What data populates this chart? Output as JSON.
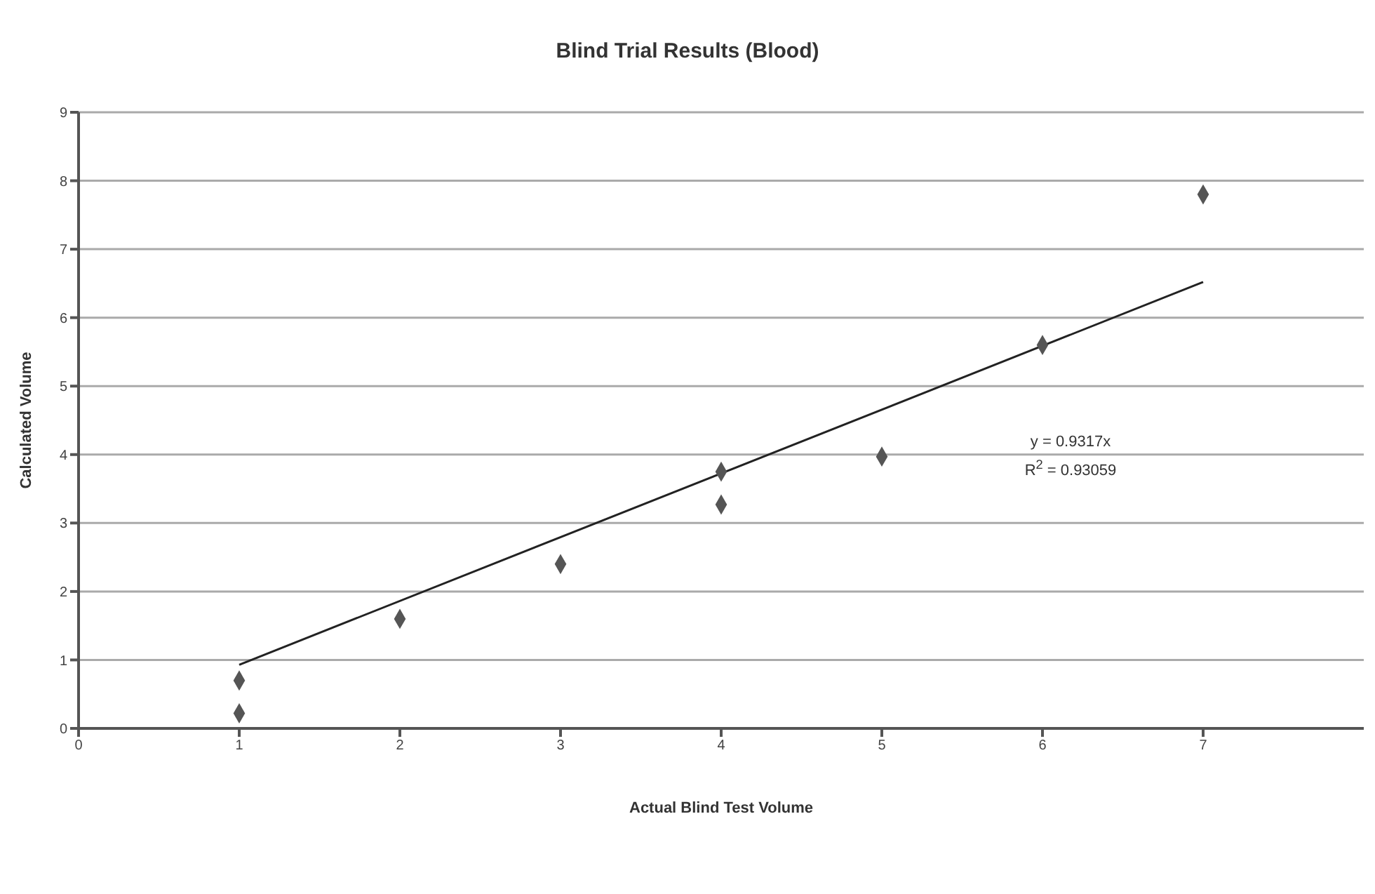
{
  "chart_data": {
    "type": "scatter",
    "title": "Blind Trial Results (Blood)",
    "xlabel": "Actual Blind Test Volume",
    "ylabel": "Calculated Volume",
    "series": [
      {
        "type": "scatter",
        "color": "#555555",
        "marker": "diamond",
        "x": [
          1,
          1,
          2,
          3,
          4,
          4,
          5,
          6,
          7
        ],
        "values": [
          0.7,
          0.22,
          1.6,
          2.4,
          3.75,
          3.27,
          3.97,
          5.6,
          7.8
        ]
      },
      {
        "type": "line",
        "color": "#222222",
        "x": [
          1,
          7
        ],
        "values": [
          0.93,
          6.52
        ]
      }
    ],
    "annotations": [
      "y = 0.9317x",
      "R$^{2}$ = 0.93059"
    ],
    "xlim": [
      0,
      8
    ],
    "xticks": [
      0,
      1,
      2,
      3,
      4,
      5,
      6,
      7
    ],
    "ylim": [
      0,
      9
    ],
    "yticks": [
      0,
      1,
      2,
      3,
      4,
      5,
      6,
      7,
      8,
      9
    ],
    "grid": "y"
  }
}
